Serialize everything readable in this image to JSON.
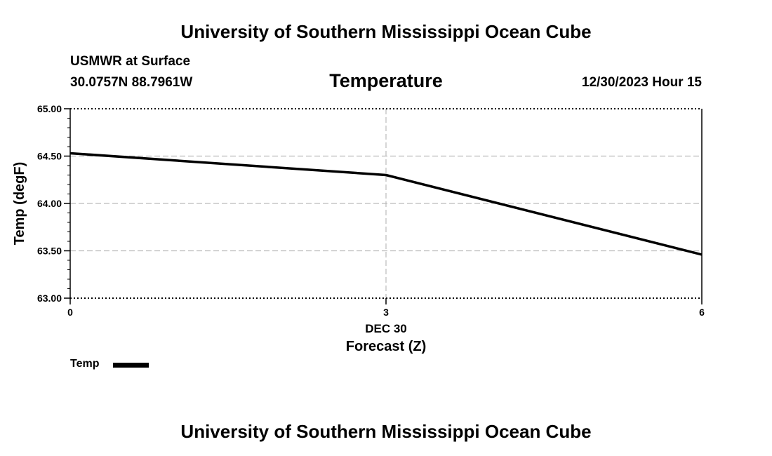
{
  "header": {
    "title": "University of Southern Mississippi Ocean Cube"
  },
  "footer": {
    "title": "University of Southern Mississippi Ocean Cube"
  },
  "station": {
    "name": "USMWR at Surface",
    "coords": "30.0757N  88.7961W",
    "datetime": "12/30/2023 Hour 15"
  },
  "chart_data": {
    "type": "line",
    "title": "Temperature",
    "ylabel": "Temp (degF)",
    "xlabel": "Forecast (Z)",
    "x_date_label": "DEC 30",
    "xlim": [
      0,
      6
    ],
    "ylim": [
      63.0,
      65.0
    ],
    "x_ticks": [
      0,
      3,
      6
    ],
    "x_tick_labels": [
      "0",
      "3",
      "6"
    ],
    "y_ticks": [
      63.0,
      63.5,
      64.0,
      64.5,
      65.0
    ],
    "y_tick_labels": [
      "63.00",
      "63.50",
      "64.00",
      "64.50",
      "65.00"
    ],
    "grid": true,
    "legend_position": "bottom-left",
    "series": [
      {
        "name": "Temp",
        "color": "#000000",
        "x": [
          0,
          3,
          6
        ],
        "values": [
          64.53,
          64.3,
          63.46
        ]
      }
    ]
  }
}
